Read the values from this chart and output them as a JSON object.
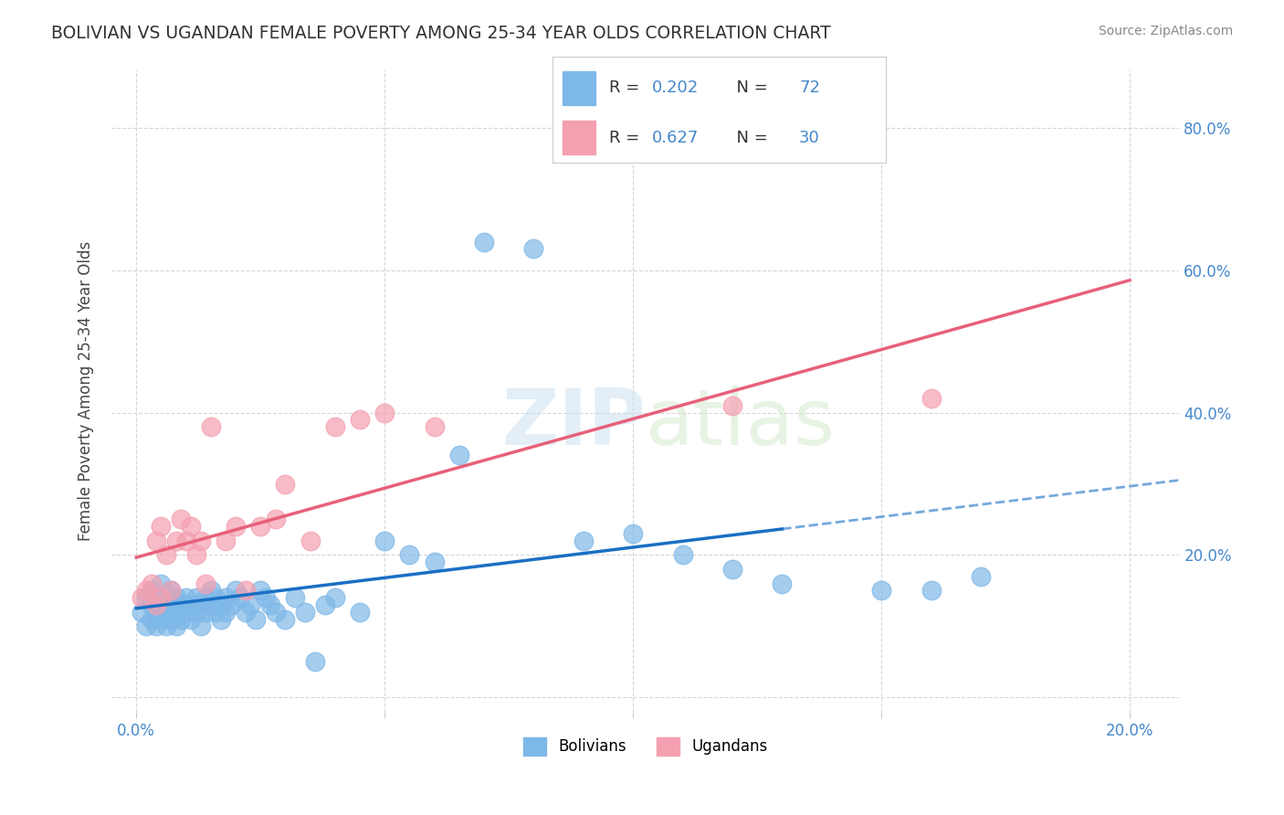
{
  "title": "BOLIVIAN VS UGANDAN FEMALE POVERTY AMONG 25-34 YEAR OLDS CORRELATION CHART",
  "source": "Source: ZipAtlas.com",
  "xlabel": "",
  "ylabel": "Female Poverty Among 25-34 Year Olds",
  "xlim": [
    -0.005,
    0.21
  ],
  "ylim": [
    -0.02,
    0.88
  ],
  "bolivians_x": [
    0.001,
    0.002,
    0.002,
    0.003,
    0.003,
    0.003,
    0.004,
    0.004,
    0.004,
    0.005,
    0.005,
    0.005,
    0.006,
    0.006,
    0.006,
    0.007,
    0.007,
    0.007,
    0.008,
    0.008,
    0.008,
    0.009,
    0.009,
    0.01,
    0.01,
    0.011,
    0.011,
    0.012,
    0.012,
    0.013,
    0.013,
    0.014,
    0.014,
    0.015,
    0.015,
    0.016,
    0.016,
    0.017,
    0.017,
    0.018,
    0.018,
    0.019,
    0.02,
    0.021,
    0.022,
    0.023,
    0.024,
    0.025,
    0.026,
    0.027,
    0.028,
    0.03,
    0.032,
    0.034,
    0.036,
    0.038,
    0.04,
    0.045,
    0.05,
    0.055,
    0.06,
    0.065,
    0.07,
    0.08,
    0.09,
    0.1,
    0.11,
    0.12,
    0.13,
    0.15,
    0.16,
    0.17
  ],
  "bolivians_y": [
    0.12,
    0.14,
    0.1,
    0.13,
    0.15,
    0.11,
    0.12,
    0.14,
    0.1,
    0.13,
    0.11,
    0.16,
    0.12,
    0.14,
    0.1,
    0.13,
    0.15,
    0.11,
    0.14,
    0.12,
    0.1,
    0.13,
    0.11,
    0.14,
    0.12,
    0.13,
    0.11,
    0.14,
    0.12,
    0.13,
    0.1,
    0.14,
    0.12,
    0.13,
    0.15,
    0.12,
    0.14,
    0.13,
    0.11,
    0.14,
    0.12,
    0.13,
    0.15,
    0.14,
    0.12,
    0.13,
    0.11,
    0.15,
    0.14,
    0.13,
    0.12,
    0.11,
    0.14,
    0.12,
    0.05,
    0.13,
    0.14,
    0.12,
    0.22,
    0.2,
    0.19,
    0.34,
    0.64,
    0.63,
    0.22,
    0.23,
    0.2,
    0.18,
    0.16,
    0.15,
    0.15,
    0.17
  ],
  "ugandans_x": [
    0.001,
    0.002,
    0.003,
    0.004,
    0.004,
    0.005,
    0.005,
    0.006,
    0.007,
    0.008,
    0.009,
    0.01,
    0.011,
    0.012,
    0.013,
    0.014,
    0.015,
    0.018,
    0.02,
    0.022,
    0.025,
    0.028,
    0.03,
    0.035,
    0.04,
    0.045,
    0.05,
    0.06,
    0.12,
    0.16
  ],
  "ugandans_y": [
    0.14,
    0.15,
    0.16,
    0.13,
    0.22,
    0.14,
    0.24,
    0.2,
    0.15,
    0.22,
    0.25,
    0.22,
    0.24,
    0.2,
    0.22,
    0.16,
    0.38,
    0.22,
    0.24,
    0.15,
    0.24,
    0.25,
    0.3,
    0.22,
    0.38,
    0.39,
    0.4,
    0.38,
    0.41,
    0.42
  ],
  "bolivian_color": "#7eb8e8",
  "ugandan_color": "#f4a0b0",
  "bolivian_line_color": "#1a6fc4",
  "ugandan_line_color": "#e8607a",
  "bolivian_R": 0.202,
  "bolivian_N": 72,
  "ugandan_R": 0.627,
  "ugandan_N": 30,
  "legend_label_blue": "Bolivians",
  "legend_label_pink": "Ugandans",
  "watermark_zip": "ZIP",
  "watermark_atlas": "atlas",
  "title_color": "#333333",
  "axis_color": "#4488cc",
  "grid_color": "#cccccc",
  "background_color": "#ffffff"
}
